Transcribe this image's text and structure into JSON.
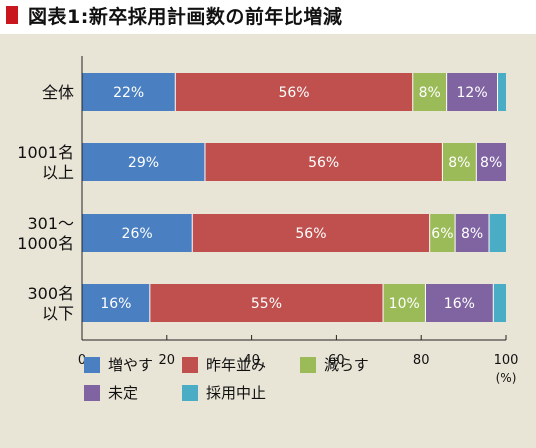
{
  "title": "図表1:新卒採用計画数の前年比増減",
  "colors": {
    "title_marker": "#c8171e",
    "panel_background": "#e8e4d6",
    "axis": "#222222",
    "data_label": "#ffffff",
    "divider": "#ffffff"
  },
  "chart_data": {
    "type": "bar",
    "orientation": "horizontal",
    "stacked": true,
    "categories": [
      [
        "全体"
      ],
      [
        "1001名",
        "以上"
      ],
      [
        "301〜",
        "1000名"
      ],
      [
        "300名",
        "以下"
      ]
    ],
    "series": [
      {
        "name": "増やす",
        "color": "#4a7fc1",
        "values": [
          22,
          29,
          26,
          16
        ],
        "labels": [
          "22%",
          "29%",
          "26%",
          "16%"
        ]
      },
      {
        "name": "昨年並み",
        "color": "#c0504d",
        "values": [
          56,
          56,
          56,
          55
        ],
        "labels": [
          "56%",
          "56%",
          "56%",
          "55%"
        ]
      },
      {
        "name": "減らす",
        "color": "#9bbb59",
        "values": [
          8,
          8,
          6,
          10
        ],
        "labels": [
          "8%",
          "8%",
          "6%",
          "10%"
        ]
      },
      {
        "name": "未定",
        "color": "#8064a2",
        "values": [
          12,
          8,
          8,
          16
        ],
        "labels": [
          "12%",
          "8%",
          "8%",
          "16%"
        ]
      },
      {
        "name": "採用中止",
        "color": "#4bacc6",
        "values": [
          3,
          0,
          4,
          3
        ],
        "labels": [
          "",
          "",
          "",
          ""
        ]
      }
    ],
    "x_ticks": [
      "0",
      "20",
      "40",
      "60",
      "80",
      "100"
    ],
    "xlim": [
      0,
      100
    ],
    "x_unit": "(%)",
    "grid": false,
    "legend_position": "bottom"
  }
}
